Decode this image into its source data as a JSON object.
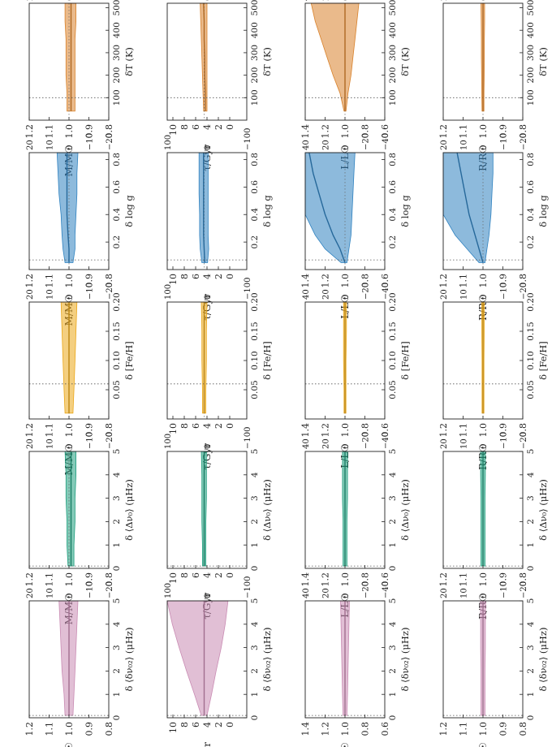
{
  "figure": {
    "orientation": "rotated 90 degrees counter-clockwise",
    "colors": {
      "temperature": "#d9822b",
      "logg": "#2f82c0",
      "feh": "#eba718",
      "dnu": "#1f9e7e",
      "dnu02": "#c98bb3",
      "text": "#222222",
      "reference_line": "#666666"
    },
    "row_labels": [
      "M/M$_\\odot$",
      "$\\tau$/Gyr",
      "L/L$_\\odot$",
      "R/R$_\\odot$"
    ],
    "column_xlabels": [
      "δT (K)",
      "δ log g",
      "δ [Fe/H]",
      "δ ⟨Δν₀⟩ (μHz)",
      "δ ⟨δν₀₂⟩ (μHz)"
    ],
    "column_xticks": [
      [
        "100",
        "200",
        "300",
        "400",
        "500"
      ],
      [
        "0.2",
        "0.4",
        "0.6",
        "0.8"
      ],
      [
        "0.05",
        "0.10",
        "0.15",
        "0.20"
      ],
      [
        "0",
        "1",
        "2",
        "3",
        "4",
        "5"
      ],
      [
        "0",
        "1",
        "2",
        "3",
        "4",
        "5"
      ]
    ],
    "row_yticks": [
      [
        "0.8",
        "0.9",
        "1.0",
        "1.1",
        "1.2"
      ],
      [
        "0",
        "2",
        "4",
        "6",
        "8",
        "10"
      ],
      [
        "0.6",
        "0.8",
        "1.0",
        "1.2",
        "1.4"
      ],
      [
        "0.8",
        "0.9",
        "1.0",
        "1.1",
        "1.2"
      ]
    ],
    "row_secondary_ticks": [
      [
        "20",
        "10",
        "0",
        "−10",
        "−20"
      ],
      [
        "100",
        "0",
        "−100"
      ],
      [
        "40",
        "20",
        "0",
        "−20",
        "−40"
      ],
      [
        "20",
        "10",
        "0",
        "−10",
        "−20"
      ]
    ]
  },
  "chart_data": [
    {
      "type": "area",
      "quantity": "M/M☉",
      "xlabel": "δT (K)",
      "xlim": [
        0,
        520
      ],
      "ylim": [
        0.8,
        1.2
      ],
      "reference_x": 100,
      "x": [
        40,
        120,
        200,
        280,
        360,
        440,
        520
      ],
      "median": [
        0.99,
        0.99,
        0.99,
        0.99,
        0.99,
        0.99,
        0.99
      ],
      "lower": [
        0.97,
        0.97,
        0.97,
        0.97,
        0.97,
        0.965,
        0.965
      ],
      "upper": [
        1.01,
        1.01,
        1.015,
        1.015,
        1.015,
        1.02,
        1.02
      ],
      "color": "#d9822b"
    },
    {
      "type": "area",
      "quantity": "τ/Gyr",
      "xlabel": "δT (K)",
      "xlim": [
        0,
        520
      ],
      "ylim": [
        -3,
        11
      ],
      "reference_x": 100,
      "x": [
        40,
        120,
        200,
        280,
        360,
        440,
        520
      ],
      "median": [
        4.3,
        4.3,
        4.4,
        4.4,
        4.5,
        4.5,
        4.6
      ],
      "lower": [
        4.0,
        4.0,
        4.0,
        4.0,
        4.0,
        4.0,
        4.0
      ],
      "upper": [
        4.6,
        4.7,
        4.8,
        4.9,
        5.0,
        5.1,
        5.2
      ],
      "color": "#d9822b"
    },
    {
      "type": "area",
      "quantity": "L/L☉",
      "xlabel": "δT (K)",
      "xlim": [
        0,
        520
      ],
      "ylim": [
        0.6,
        1.4
      ],
      "reference_x": 100,
      "x": [
        40,
        120,
        200,
        280,
        360,
        440,
        520
      ],
      "median": [
        1.0,
        1.0,
        1.0,
        1.0,
        1.0,
        1.0,
        1.0
      ],
      "lower": [
        0.99,
        0.97,
        0.94,
        0.92,
        0.9,
        0.88,
        0.86
      ],
      "upper": [
        1.01,
        1.05,
        1.12,
        1.18,
        1.24,
        1.3,
        1.34
      ],
      "color": "#d9822b"
    },
    {
      "type": "area",
      "quantity": "R/R☉",
      "xlabel": "δT (K)",
      "xlim": [
        0,
        520
      ],
      "ylim": [
        0.8,
        1.2
      ],
      "reference_x": 100,
      "x": [
        40,
        120,
        200,
        280,
        360,
        440,
        520
      ],
      "median": [
        1.0,
        1.0,
        1.0,
        1.0,
        1.0,
        1.0,
        1.0
      ],
      "lower": [
        0.995,
        0.995,
        0.994,
        0.993,
        0.993,
        0.992,
        0.992
      ],
      "upper": [
        1.005,
        1.006,
        1.007,
        1.008,
        1.008,
        1.009,
        1.01
      ],
      "color": "#d9822b"
    },
    {
      "type": "area",
      "quantity": "M/M☉",
      "xlabel": "δ log g",
      "xlim": [
        0,
        0.85
      ],
      "ylim": [
        0.8,
        1.2
      ],
      "reference_x": 0.07,
      "x": [
        0.05,
        0.15,
        0.25,
        0.4,
        0.55,
        0.7,
        0.85
      ],
      "median": [
        1.0,
        1.0,
        1.005,
        1.01,
        1.01,
        1.01,
        1.01
      ],
      "lower": [
        0.98,
        0.97,
        0.97,
        0.965,
        0.96,
        0.96,
        0.955
      ],
      "upper": [
        1.02,
        1.03,
        1.035,
        1.04,
        1.05,
        1.055,
        1.06
      ],
      "color": "#2f82c0"
    },
    {
      "type": "area",
      "quantity": "τ/Gyr",
      "xlabel": "δ log g",
      "xlim": [
        0,
        0.85
      ],
      "ylim": [
        -3,
        11
      ],
      "reference_x": 0.07,
      "x": [
        0.05,
        0.15,
        0.25,
        0.4,
        0.55,
        0.7,
        0.85
      ],
      "median": [
        4.4,
        4.5,
        4.6,
        4.6,
        4.6,
        4.6,
        4.6
      ],
      "lower": [
        3.9,
        3.7,
        3.8,
        3.8,
        3.8,
        3.8,
        3.8
      ],
      "upper": [
        4.9,
        5.2,
        5.3,
        5.3,
        5.4,
        5.4,
        5.4
      ],
      "color": "#2f82c0"
    },
    {
      "type": "area",
      "quantity": "L/L☉",
      "xlabel": "δ log g",
      "xlim": [
        0,
        0.85
      ],
      "ylim": [
        0.6,
        1.4
      ],
      "reference_x": 0.07,
      "x": [
        0.05,
        0.15,
        0.25,
        0.4,
        0.55,
        0.7,
        0.85
      ],
      "median": [
        1.0,
        1.05,
        1.12,
        1.2,
        1.26,
        1.32,
        1.36
      ],
      "lower": [
        0.98,
        0.96,
        0.94,
        0.93,
        0.92,
        0.91,
        0.9
      ],
      "upper": [
        1.04,
        1.2,
        1.3,
        1.4,
        1.4,
        1.4,
        1.4
      ],
      "color": "#2f82c0"
    },
    {
      "type": "area",
      "quantity": "R/R☉",
      "xlabel": "δ log g",
      "xlim": [
        0,
        0.85
      ],
      "ylim": [
        0.8,
        1.2
      ],
      "reference_x": 0.07,
      "x": [
        0.05,
        0.15,
        0.25,
        0.4,
        0.55,
        0.7,
        0.85
      ],
      "median": [
        1.0,
        1.02,
        1.04,
        1.07,
        1.09,
        1.11,
        1.13
      ],
      "lower": [
        0.99,
        0.98,
        0.97,
        0.96,
        0.955,
        0.95,
        0.95
      ],
      "upper": [
        1.02,
        1.08,
        1.14,
        1.2,
        1.2,
        1.2,
        1.2
      ],
      "color": "#2f82c0"
    },
    {
      "type": "area",
      "quantity": "M/M☉",
      "xlabel": "δ [Fe/H]",
      "xlim": [
        0,
        0.2
      ],
      "ylim": [
        0.8,
        1.2
      ],
      "reference_x": 0.06,
      "x": [
        0.01,
        0.05,
        0.1,
        0.15,
        0.2
      ],
      "median": [
        1.0,
        1.0,
        1.0,
        1.0,
        1.0
      ],
      "lower": [
        0.98,
        0.975,
        0.97,
        0.965,
        0.96
      ],
      "upper": [
        1.02,
        1.025,
        1.03,
        1.035,
        1.04
      ],
      "color": "#eba718"
    },
    {
      "type": "area",
      "quantity": "τ/Gyr",
      "xlabel": "δ [Fe/H]",
      "xlim": [
        0,
        0.2
      ],
      "ylim": [
        -3,
        11
      ],
      "reference_x": 0.06,
      "x": [
        0.01,
        0.05,
        0.1,
        0.15,
        0.2
      ],
      "median": [
        4.5,
        4.5,
        4.5,
        4.5,
        4.5
      ],
      "lower": [
        4.2,
        4.2,
        4.1,
        4.1,
        4.0
      ],
      "upper": [
        4.8,
        4.8,
        4.9,
        4.9,
        5.0
      ],
      "color": "#eba718"
    },
    {
      "type": "area",
      "quantity": "L/L☉",
      "xlabel": "δ [Fe/H]",
      "xlim": [
        0,
        0.2
      ],
      "ylim": [
        0.6,
        1.4
      ],
      "reference_x": 0.06,
      "x": [
        0.01,
        0.05,
        0.1,
        0.15,
        0.2
      ],
      "median": [
        1.0,
        1.0,
        1.0,
        1.0,
        1.0
      ],
      "lower": [
        0.99,
        0.99,
        0.99,
        0.985,
        0.985
      ],
      "upper": [
        1.01,
        1.01,
        1.015,
        1.015,
        1.015
      ],
      "color": "#eba718"
    },
    {
      "type": "area",
      "quantity": "R/R☉",
      "xlabel": "δ [Fe/H]",
      "xlim": [
        0,
        0.2
      ],
      "ylim": [
        0.8,
        1.2
      ],
      "reference_x": 0.06,
      "x": [
        0.01,
        0.05,
        0.1,
        0.15,
        0.2
      ],
      "median": [
        1.0,
        1.0,
        1.0,
        1.0,
        1.0
      ],
      "lower": [
        0.995,
        0.995,
        0.995,
        0.994,
        0.994
      ],
      "upper": [
        1.005,
        1.005,
        1.005,
        1.006,
        1.006
      ],
      "color": "#eba718"
    },
    {
      "type": "area",
      "quantity": "M/M☉",
      "xlabel": "δ ⟨Δν₀⟩ (μHz)",
      "xlim": [
        0,
        5
      ],
      "ylim": [
        0.8,
        1.2
      ],
      "reference_x": 0.1,
      "x": [
        0.1,
        1,
        2,
        3,
        4,
        5
      ],
      "median": [
        0.99,
        0.99,
        0.99,
        0.99,
        0.99,
        0.99
      ],
      "lower": [
        0.975,
        0.975,
        0.97,
        0.97,
        0.965,
        0.965
      ],
      "upper": [
        1.005,
        1.01,
        1.01,
        1.015,
        1.015,
        1.02
      ],
      "color": "#1f9e7e"
    },
    {
      "type": "area",
      "quantity": "τ/Gyr",
      "xlabel": "δ ⟨Δν₀⟩ (μHz)",
      "xlim": [
        0,
        5
      ],
      "ylim": [
        -3,
        11
      ],
      "reference_x": 0.1,
      "x": [
        0.1,
        1,
        2,
        3,
        4,
        5
      ],
      "median": [
        4.5,
        4.5,
        4.5,
        4.5,
        4.5,
        4.5
      ],
      "lower": [
        4.2,
        4.2,
        4.2,
        4.1,
        4.1,
        4.1
      ],
      "upper": [
        4.8,
        4.8,
        4.9,
        4.9,
        4.9,
        5.0
      ],
      "color": "#1f9e7e"
    },
    {
      "type": "area",
      "quantity": "L/L☉",
      "xlabel": "δ ⟨Δν₀⟩ (μHz)",
      "xlim": [
        0,
        5
      ],
      "ylim": [
        0.6,
        1.4
      ],
      "reference_x": 0.1,
      "x": [
        0.1,
        1,
        2,
        3,
        4,
        5
      ],
      "median": [
        1.0,
        1.0,
        1.0,
        1.0,
        1.0,
        1.0
      ],
      "lower": [
        0.98,
        0.98,
        0.98,
        0.975,
        0.975,
        0.975
      ],
      "upper": [
        1.02,
        1.02,
        1.02,
        1.025,
        1.025,
        1.025
      ],
      "color": "#1f9e7e"
    },
    {
      "type": "area",
      "quantity": "R/R☉",
      "xlabel": "δ ⟨Δν₀⟩ (μHz)",
      "xlim": [
        0,
        5
      ],
      "ylim": [
        0.8,
        1.2
      ],
      "reference_x": 0.1,
      "x": [
        0.1,
        1,
        2,
        3,
        4,
        5
      ],
      "median": [
        1.0,
        1.0,
        1.0,
        1.0,
        1.0,
        1.0
      ],
      "lower": [
        0.99,
        0.99,
        0.99,
        0.99,
        0.988,
        0.988
      ],
      "upper": [
        1.01,
        1.01,
        1.01,
        1.01,
        1.012,
        1.012
      ],
      "color": "#1f9e7e"
    },
    {
      "type": "area",
      "quantity": "M/M☉",
      "xlabel": "δ ⟨δν₀₂⟩ (μHz)",
      "xlim": [
        0,
        5
      ],
      "ylim": [
        0.8,
        1.2
      ],
      "reference_x": 0.1,
      "x": [
        0.1,
        1,
        2,
        3,
        4,
        5
      ],
      "median": [
        1.0,
        1.0,
        1.0,
        1.0,
        1.0,
        1.0
      ],
      "lower": [
        0.98,
        0.975,
        0.97,
        0.965,
        0.96,
        0.955
      ],
      "upper": [
        1.02,
        1.025,
        1.035,
        1.04,
        1.045,
        1.05
      ],
      "color": "#c98bb3"
    },
    {
      "type": "area",
      "quantity": "τ/Gyr",
      "xlabel": "δ ⟨δν₀₂⟩ (μHz)",
      "xlim": [
        0,
        5
      ],
      "ylim": [
        -3,
        11
      ],
      "reference_x": 0.1,
      "x": [
        0.1,
        1,
        2,
        3,
        4,
        5
      ],
      "median": [
        4.5,
        4.5,
        4.5,
        4.5,
        4.5,
        4.5
      ],
      "lower": [
        4.0,
        3.2,
        2.4,
        1.5,
        0.8,
        0.3
      ],
      "upper": [
        5.0,
        6.2,
        7.6,
        8.9,
        10.1,
        11.0
      ],
      "color": "#c98bb3"
    },
    {
      "type": "area",
      "quantity": "L/L☉",
      "xlabel": "δ ⟨δν₀₂⟩ (μHz)",
      "xlim": [
        0,
        5
      ],
      "ylim": [
        0.6,
        1.4
      ],
      "reference_x": 0.1,
      "x": [
        0.1,
        1,
        2,
        3,
        4,
        5
      ],
      "median": [
        1.0,
        1.0,
        1.0,
        1.0,
        1.0,
        1.0
      ],
      "lower": [
        0.98,
        0.975,
        0.97,
        0.965,
        0.96,
        0.955
      ],
      "upper": [
        1.02,
        1.025,
        1.03,
        1.035,
        1.04,
        1.045
      ],
      "color": "#c98bb3"
    },
    {
      "type": "area",
      "quantity": "R/R☉",
      "xlabel": "δ ⟨δν₀₂⟩ (μHz)",
      "xlim": [
        0,
        5
      ],
      "ylim": [
        0.8,
        1.2
      ],
      "reference_x": 0.1,
      "x": [
        0.1,
        1,
        2,
        3,
        4,
        5
      ],
      "median": [
        1.0,
        1.0,
        1.0,
        1.0,
        1.0,
        1.0
      ],
      "lower": [
        0.99,
        0.99,
        0.99,
        0.988,
        0.988,
        0.987
      ],
      "upper": [
        1.01,
        1.01,
        1.01,
        1.012,
        1.012,
        1.013
      ],
      "color": "#c98bb3"
    }
  ]
}
